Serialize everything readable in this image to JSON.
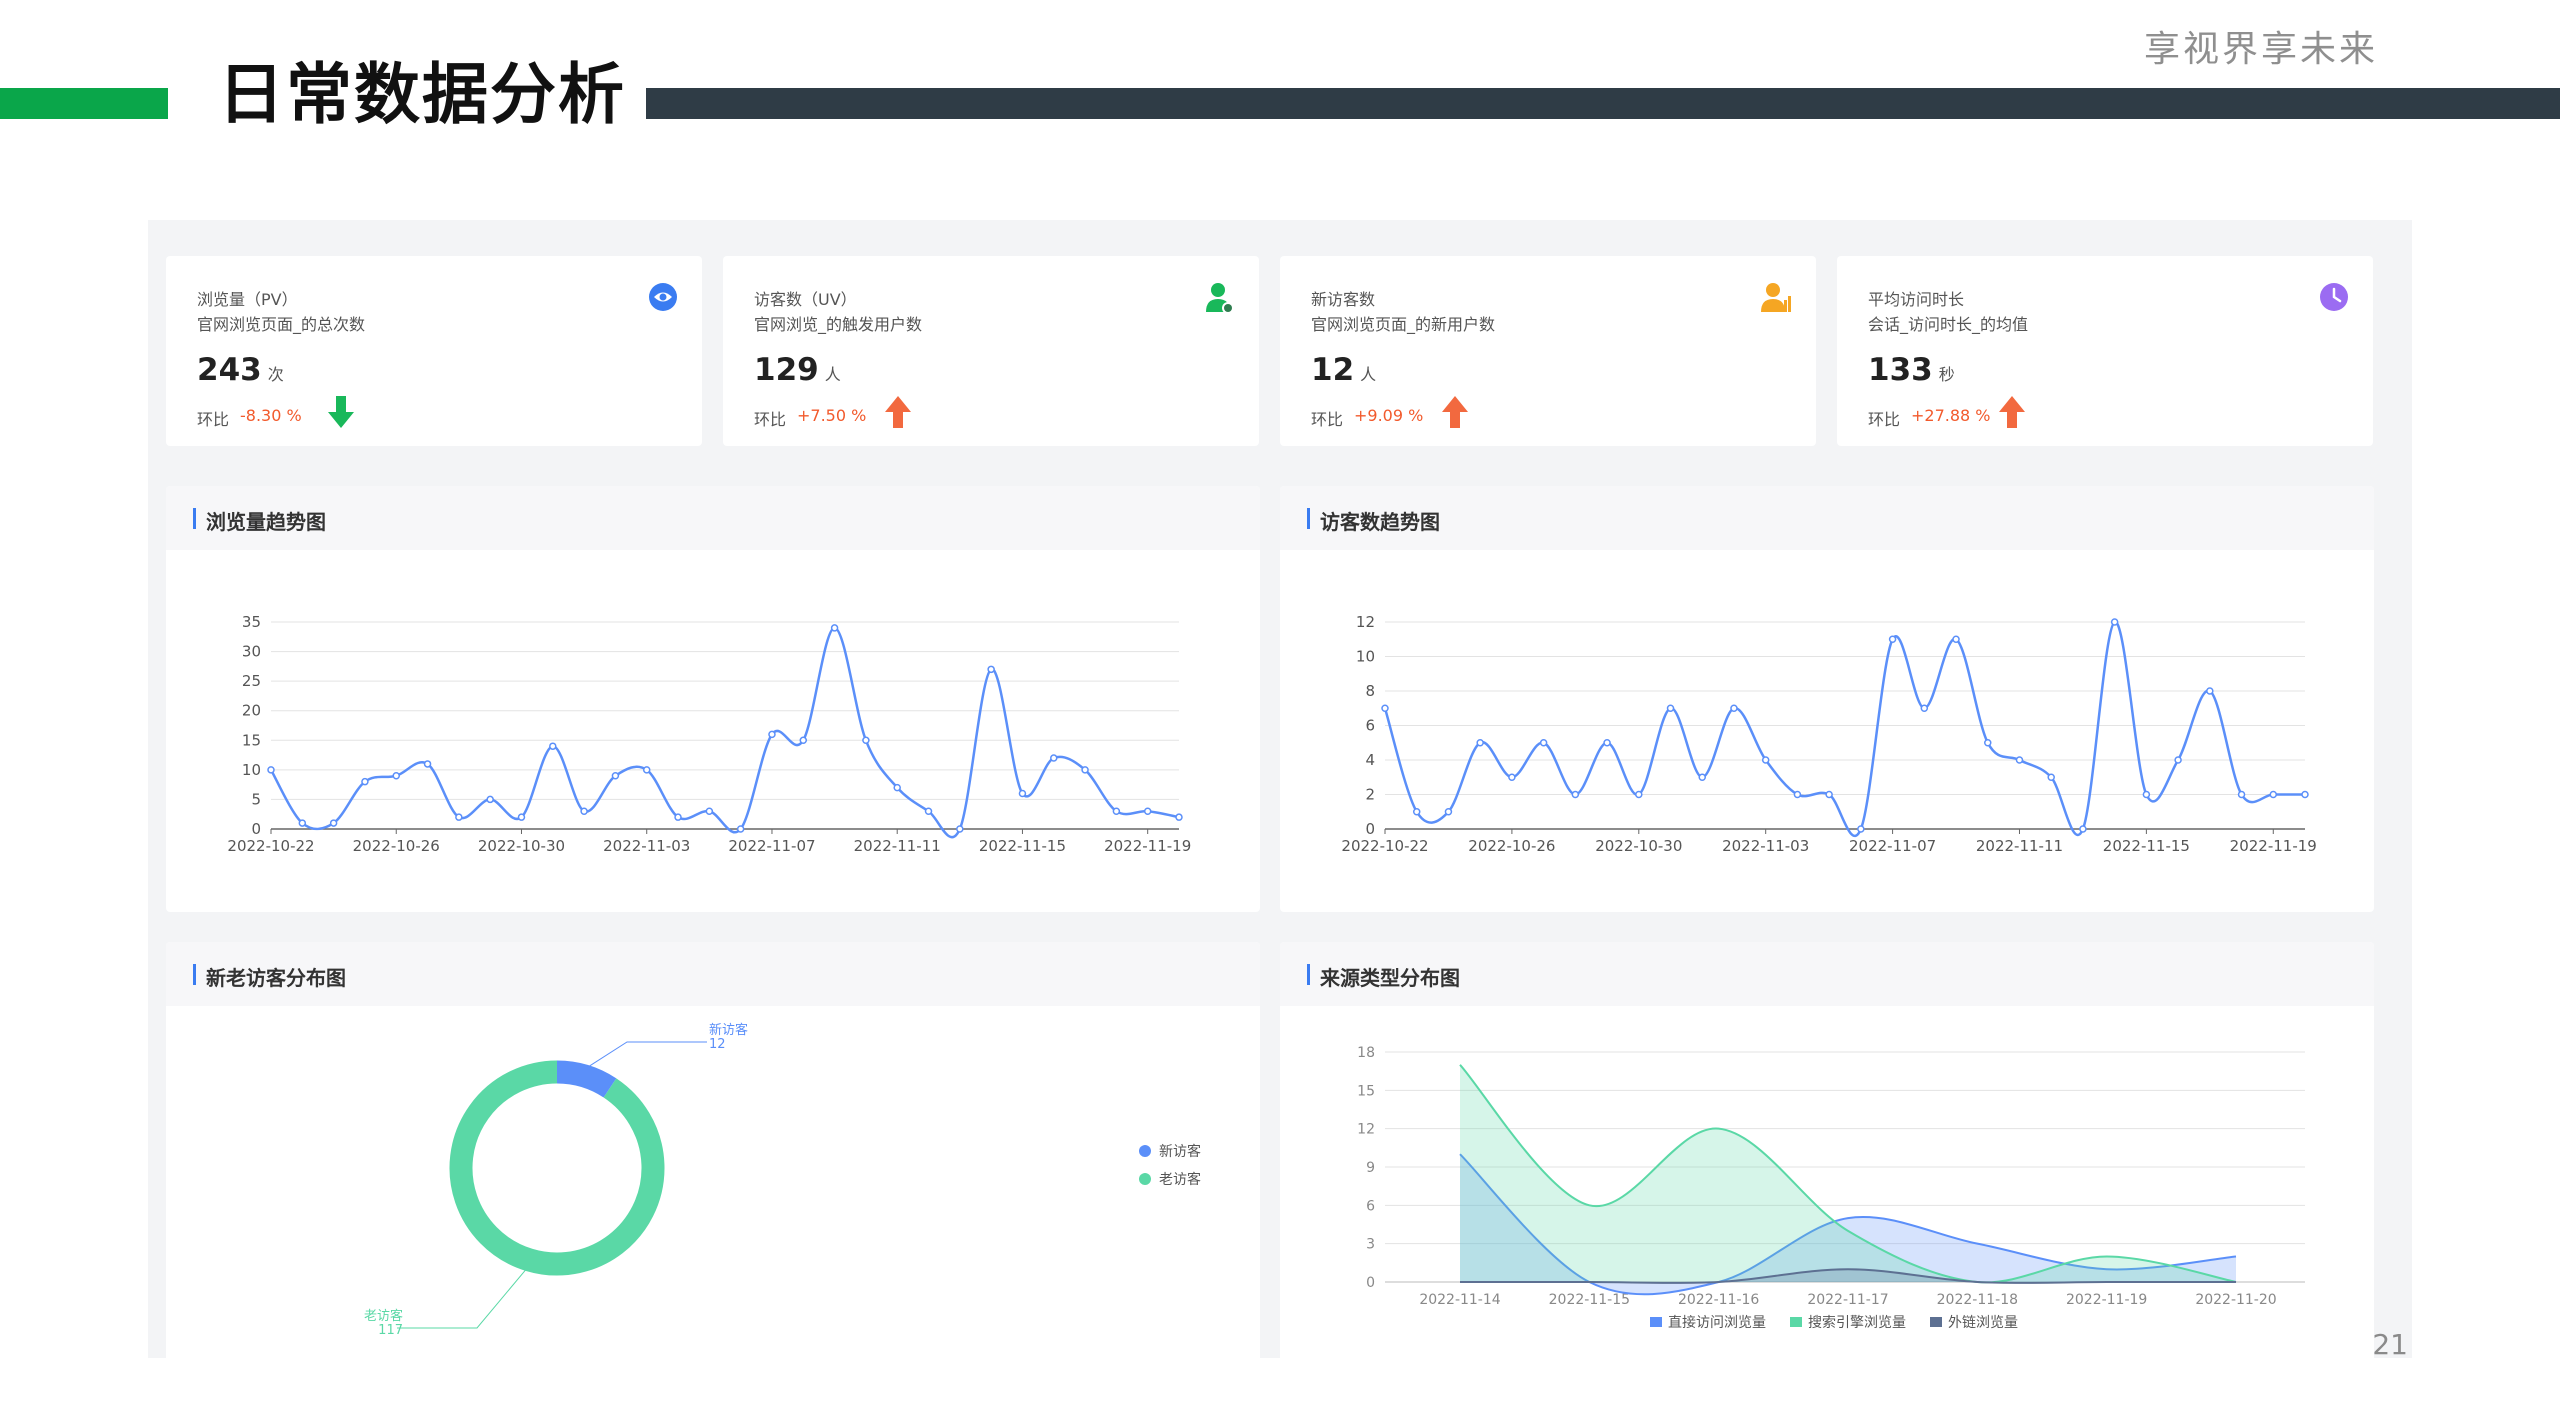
{
  "header": {
    "title": "日常数据分析",
    "slogan": "享视界享未来",
    "page_number": "21"
  },
  "colors": {
    "green": "#0aa64a",
    "dark": "#2f3c46",
    "down": "#19b85a",
    "up": "#f2693f",
    "line": "#5b8ff9",
    "teal": "#5ad8a6",
    "slate": "#5d7092"
  },
  "cards": [
    {
      "title": "浏览量（PV）",
      "subtitle": "官网浏览页面_的总次数",
      "value": "243",
      "unit": "次",
      "compare_label": "环比",
      "compare_value": "-8.30 %",
      "trend": "down",
      "icon": "eye-icon"
    },
    {
      "title": "访客数（UV）",
      "subtitle": "官网浏览_的触发用户数",
      "value": "129",
      "unit": "人",
      "compare_label": "环比",
      "compare_value": "+7.50 %",
      "trend": "up",
      "icon": "user-icon"
    },
    {
      "title": "新访客数",
      "subtitle": "官网浏览页面_的新用户数",
      "value": "12",
      "unit": "人",
      "compare_label": "环比",
      "compare_value": "+9.09 %",
      "trend": "up",
      "icon": "new-user-icon"
    },
    {
      "title": "平均访问时长",
      "subtitle": "会话_访问时长_的均值",
      "value": "133",
      "unit": "秒",
      "compare_label": "环比",
      "compare_value": "+27.88 %",
      "trend": "up",
      "icon": "clock-icon"
    }
  ],
  "panels": {
    "pv": "浏览量趋势图",
    "uv": "访客数趋势图",
    "visitors": "新老访客分布图",
    "source": "来源类型分布图"
  },
  "chart_data": [
    {
      "type": "line",
      "panel": "浏览量趋势图",
      "ylim": [
        0,
        35
      ],
      "yticks": [
        0,
        5,
        10,
        15,
        20,
        25,
        30,
        35
      ],
      "xtick_labels": [
        "2022-10-22",
        "2022-10-26",
        "2022-10-30",
        "2022-11-03",
        "2022-11-07",
        "2022-11-11",
        "2022-11-15",
        "2022-11-19"
      ],
      "values": [
        10,
        1,
        1,
        8,
        9,
        11,
        2,
        5,
        2,
        14,
        3,
        9,
        10,
        2,
        3,
        0,
        16,
        15,
        34,
        15,
        7,
        3,
        0,
        27,
        6,
        12,
        10,
        3,
        3,
        2
      ]
    },
    {
      "type": "line",
      "panel": "访客数趋势图",
      "ylim": [
        0,
        12
      ],
      "yticks": [
        0,
        2,
        4,
        6,
        8,
        10,
        12
      ],
      "xtick_labels": [
        "2022-10-22",
        "2022-10-26",
        "2022-10-30",
        "2022-11-03",
        "2022-11-07",
        "2022-11-11",
        "2022-11-15",
        "2022-11-19"
      ],
      "values": [
        7,
        1,
        1,
        5,
        3,
        5,
        2,
        5,
        2,
        7,
        3,
        7,
        4,
        2,
        2,
        0,
        11,
        7,
        11,
        5,
        4,
        3,
        0,
        12,
        2,
        4,
        8,
        2,
        2,
        2
      ]
    },
    {
      "type": "pie",
      "panel": "新老访客分布图",
      "slices": [
        {
          "label": "新访客",
          "value": 12,
          "color": "#5b8ff9"
        },
        {
          "label": "老访客",
          "value": 117,
          "color": "#5ad8a6"
        }
      ],
      "legend": "right"
    },
    {
      "type": "area",
      "panel": "来源类型分布图",
      "ylim": [
        0,
        18
      ],
      "yticks": [
        0,
        3,
        6,
        9,
        12,
        15,
        18
      ],
      "categories": [
        "2022-11-14",
        "2022-11-15",
        "2022-11-16",
        "2022-11-17",
        "2022-11-18",
        "2022-11-19",
        "2022-11-20"
      ],
      "series": [
        {
          "name": "直接访问浏览量",
          "color": "#5b8ff9",
          "values": [
            10,
            0,
            0,
            5,
            3,
            1,
            2
          ]
        },
        {
          "name": "搜索引擎浏览量",
          "color": "#5ad8a6",
          "values": [
            17,
            6,
            12,
            4,
            0,
            2,
            0
          ]
        },
        {
          "name": "外链浏览量",
          "color": "#5d7092",
          "values": [
            0,
            0,
            0,
            1,
            0,
            0,
            0
          ]
        }
      ],
      "legend": "bottom"
    }
  ]
}
